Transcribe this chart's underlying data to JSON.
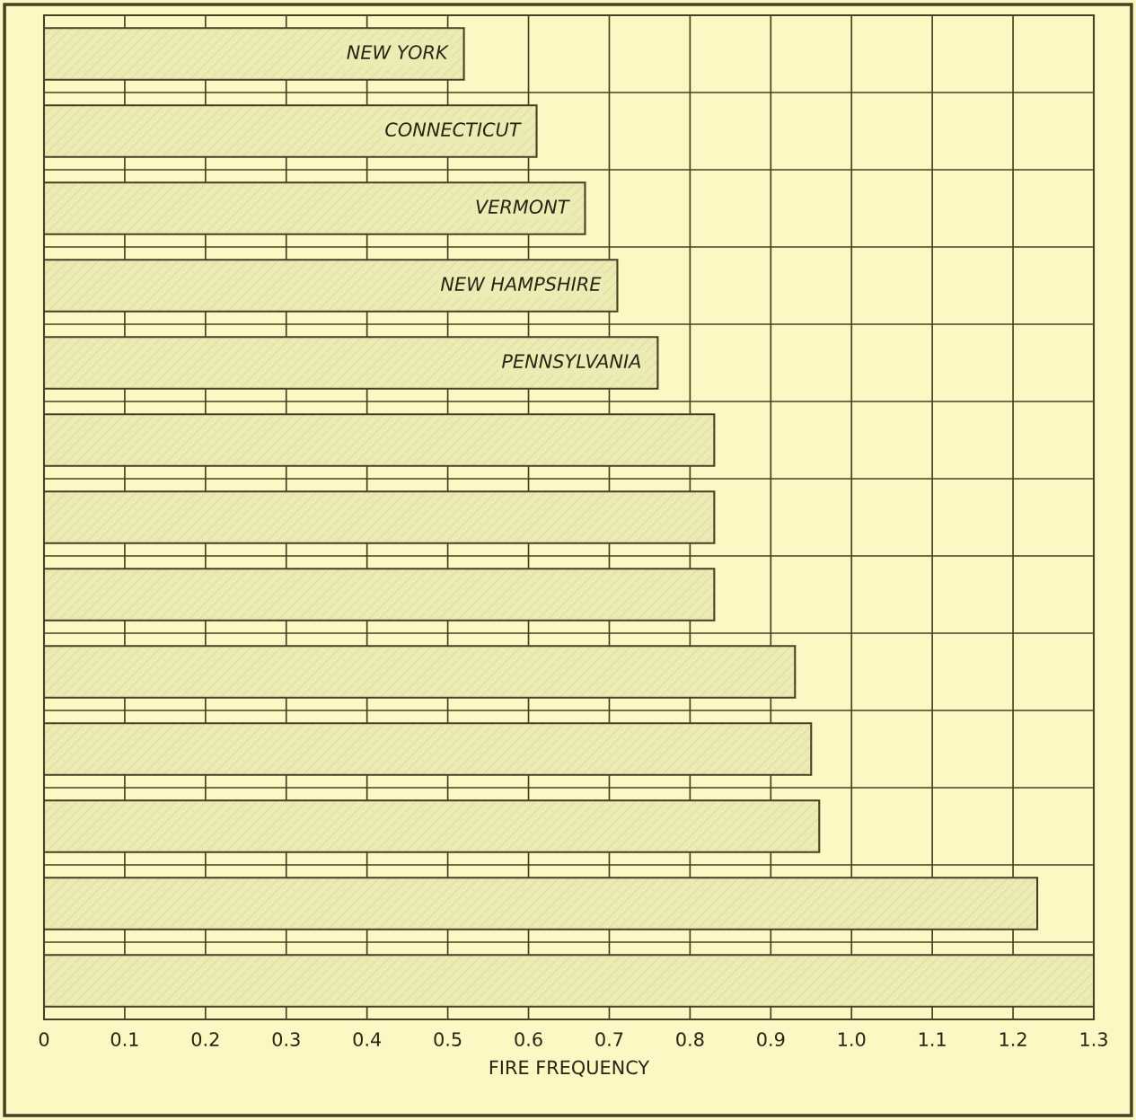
{
  "chart_data": {
    "type": "bar",
    "orientation": "horizontal",
    "xlabel": "FIRE FREQUENCY",
    "categories": [
      "NEW YORK",
      "CONNECTICUT",
      "VERMONT",
      "NEW HAMPSHIRE",
      "PENNSYLVANIA",
      null,
      null,
      null,
      null,
      null,
      null,
      null,
      null
    ],
    "values": [
      0.52,
      0.61,
      0.67,
      0.71,
      0.76,
      0.83,
      0.83,
      0.83,
      0.93,
      0.95,
      0.96,
      1.23,
      1.3
    ],
    "color": "#ecebb4",
    "xlim": [
      0,
      1.3
    ],
    "xticks": [
      0,
      0.1,
      0.2,
      0.3,
      0.4,
      0.5,
      0.6,
      0.7,
      0.8,
      0.9,
      {
        "value": 1.0,
        "label": "1.0"
      },
      1.1,
      1.2,
      1.3
    ],
    "grid": "x",
    "tick_labels": "x"
  }
}
